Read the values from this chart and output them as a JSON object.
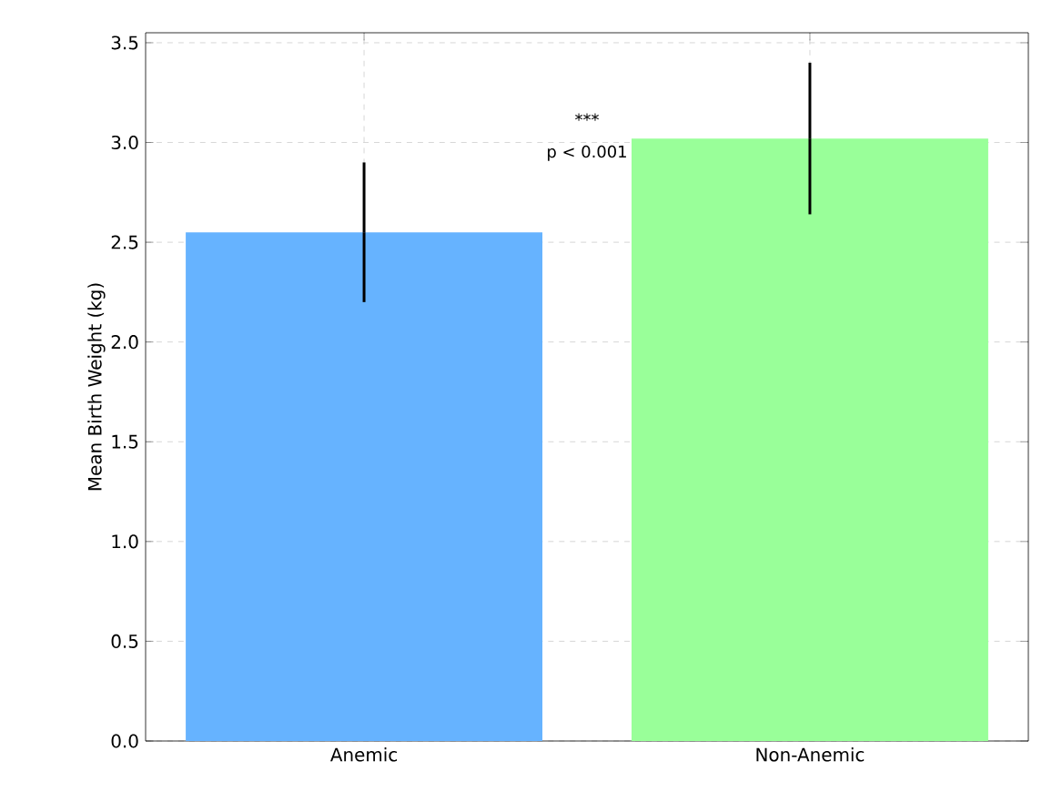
{
  "chart_data": {
    "type": "bar",
    "ylabel": "Mean Birth Weight (kg)",
    "categories": [
      "Anemic",
      "Non-Anemic"
    ],
    "values": [
      2.55,
      3.02
    ],
    "colors": [
      "#66b3ff",
      "#99ff99"
    ],
    "errors": [
      0.35,
      0.38
    ],
    "ylim": [
      0,
      3.55
    ],
    "yticks": [
      {
        "value": 0,
        "label": "0.0"
      },
      {
        "value": 0.5,
        "label": "0.5"
      },
      {
        "value": 1,
        "label": "1.0"
      },
      {
        "value": 1.5,
        "label": "1.5"
      },
      {
        "value": 2,
        "label": "2.0"
      },
      {
        "value": 2.5,
        "label": "2.5"
      },
      {
        "value": 3,
        "label": "3.0"
      },
      {
        "value": 3.5,
        "label": "3.5"
      }
    ],
    "annotations": [
      "***",
      "p < 0.001"
    ],
    "grid": true
  }
}
